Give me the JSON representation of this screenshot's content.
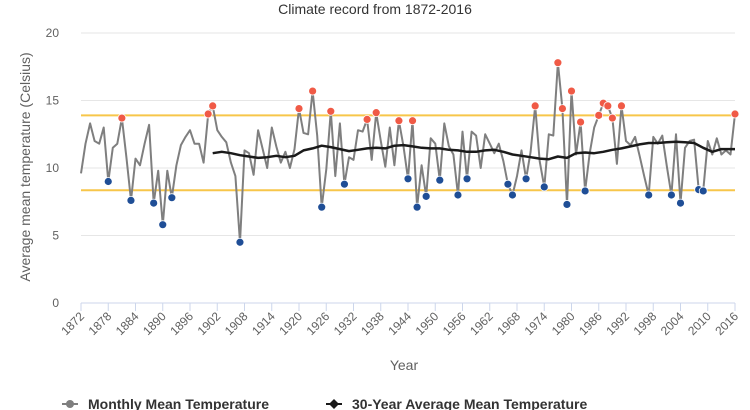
{
  "chart_data": {
    "type": "line",
    "title": "Climate record from 1872-2016",
    "xlabel": "Year",
    "ylabel": "Average mean temperature (Celsius)",
    "xlim": [
      1872,
      2016
    ],
    "ylim": [
      0,
      20
    ],
    "y_ticks": [
      0,
      5,
      10,
      15,
      20
    ],
    "x_ticks": [
      "1872",
      "1878",
      "1884",
      "1890",
      "1896",
      "1902",
      "1908",
      "1914",
      "1920",
      "1926",
      "1932",
      "1938",
      "1944",
      "1950",
      "1956",
      "1962",
      "1968",
      "1974",
      "1980",
      "1986",
      "1992",
      "1998",
      "2004",
      "2010",
      "2016"
    ],
    "reference_lines": [
      {
        "y": 13.9,
        "color": "#f7c64a"
      },
      {
        "y": 8.35,
        "color": "#f7c64a"
      }
    ],
    "grid": "horizontal",
    "legend_position": "bottom",
    "series": [
      {
        "name": "Monthly Mean Temperature",
        "color": "#7f7f7f",
        "x": [
          1872,
          1873,
          1874,
          1875,
          1876,
          1877,
          1878,
          1879,
          1880,
          1881,
          1882,
          1883,
          1884,
          1885,
          1886,
          1887,
          1888,
          1889,
          1890,
          1891,
          1892,
          1893,
          1894,
          1895,
          1896,
          1897,
          1898,
          1899,
          1900,
          1901,
          1902,
          1903,
          1904,
          1905,
          1906,
          1907,
          1908,
          1909,
          1910,
          1911,
          1912,
          1913,
          1914,
          1915,
          1916,
          1917,
          1918,
          1919,
          1920,
          1921,
          1922,
          1923,
          1924,
          1925,
          1926,
          1927,
          1928,
          1929,
          1930,
          1931,
          1932,
          1933,
          1934,
          1935,
          1936,
          1937,
          1938,
          1939,
          1940,
          1941,
          1942,
          1943,
          1944,
          1945,
          1946,
          1947,
          1948,
          1949,
          1950,
          1951,
          1952,
          1953,
          1954,
          1955,
          1956,
          1957,
          1958,
          1959,
          1960,
          1961,
          1962,
          1963,
          1964,
          1965,
          1966,
          1967,
          1968,
          1969,
          1970,
          1971,
          1972,
          1973,
          1974,
          1975,
          1976,
          1977,
          1978,
          1979,
          1980,
          1981,
          1982,
          1983,
          1984,
          1985,
          1986,
          1987,
          1988,
          1989,
          1990,
          1991,
          1992,
          1993,
          1994,
          1995,
          1996,
          1997,
          1998,
          1999,
          2000,
          2001,
          2002,
          2003,
          2004,
          2005,
          2006,
          2007,
          2008,
          2009,
          2010,
          2011,
          2012,
          2013,
          2014,
          2015,
          2016
        ],
        "y": [
          9.6,
          11.8,
          13.3,
          12.0,
          11.8,
          13.0,
          9.0,
          11.5,
          11.8,
          13.7,
          10.8,
          7.6,
          10.7,
          10.2,
          11.8,
          13.2,
          7.4,
          9.8,
          5.8,
          9.8,
          7.8,
          10.2,
          11.7,
          12.3,
          12.8,
          11.8,
          11.8,
          10.4,
          14.0,
          14.6,
          12.8,
          12.3,
          11.9,
          10.4,
          9.4,
          4.5,
          11.3,
          11.1,
          9.5,
          12.8,
          11.4,
          10.0,
          13.0,
          11.6,
          10.4,
          11.2,
          10.0,
          11.4,
          14.4,
          12.6,
          12.5,
          15.7,
          12.4,
          7.1,
          9.9,
          14.2,
          9.4,
          13.3,
          8.8,
          10.8,
          10.6,
          12.8,
          12.7,
          13.6,
          10.6,
          14.1,
          12.0,
          10.1,
          13.0,
          10.2,
          13.5,
          11.6,
          9.2,
          13.5,
          7.1,
          10.2,
          7.9,
          12.2,
          11.8,
          9.1,
          13.3,
          11.6,
          11.0,
          8.0,
          12.7,
          9.2,
          12.7,
          12.4,
          10.0,
          12.5,
          11.8,
          11.1,
          11.8,
          10.5,
          8.8,
          8.0,
          9.4,
          11.3,
          9.2,
          11.2,
          14.6,
          10.5,
          8.6,
          12.5,
          12.4,
          17.8,
          14.4,
          7.3,
          15.7,
          11.0,
          13.4,
          8.3,
          11.1,
          13.0,
          13.9,
          14.8,
          14.6,
          13.7,
          10.3,
          14.6,
          12.0,
          11.7,
          12.3,
          10.9,
          9.4,
          8.0,
          12.3,
          11.8,
          12.4,
          10.1,
          8.0,
          12.5,
          7.4,
          11.5,
          12.0,
          12.1,
          8.4,
          8.3,
          12.0,
          11.0,
          12.2,
          11.0,
          11.3,
          11.0,
          14.0
        ]
      },
      {
        "name": "30-Year Average Mean Temperature",
        "color": "#1a1a1a",
        "x": [
          1901,
          1903,
          1905,
          1907,
          1909,
          1911,
          1913,
          1915,
          1917,
          1919,
          1921,
          1923,
          1925,
          1927,
          1929,
          1931,
          1933,
          1935,
          1937,
          1939,
          1941,
          1943,
          1945,
          1947,
          1949,
          1951,
          1953,
          1955,
          1957,
          1959,
          1961,
          1963,
          1965,
          1967,
          1969,
          1971,
          1973,
          1975,
          1977,
          1979,
          1981,
          1983,
          1985,
          1987,
          1989,
          1991,
          1993,
          1995,
          1997,
          1999,
          2001,
          2003,
          2005,
          2007,
          2009,
          2011,
          2013,
          2016
        ],
        "y": [
          11.1,
          11.2,
          11.1,
          10.95,
          10.85,
          10.75,
          10.8,
          10.9,
          10.8,
          10.9,
          11.3,
          11.45,
          11.65,
          11.55,
          11.4,
          11.25,
          11.35,
          11.45,
          11.5,
          11.45,
          11.65,
          11.7,
          11.6,
          11.5,
          11.45,
          11.45,
          11.35,
          11.3,
          11.2,
          11.2,
          11.3,
          11.35,
          11.2,
          11.0,
          10.9,
          10.8,
          10.7,
          10.65,
          10.85,
          10.75,
          11.1,
          11.15,
          11.1,
          11.2,
          11.35,
          11.45,
          11.6,
          11.75,
          11.85,
          11.85,
          11.9,
          11.95,
          11.9,
          11.85,
          11.5,
          11.2,
          11.4,
          11.4
        ]
      }
    ]
  }
}
